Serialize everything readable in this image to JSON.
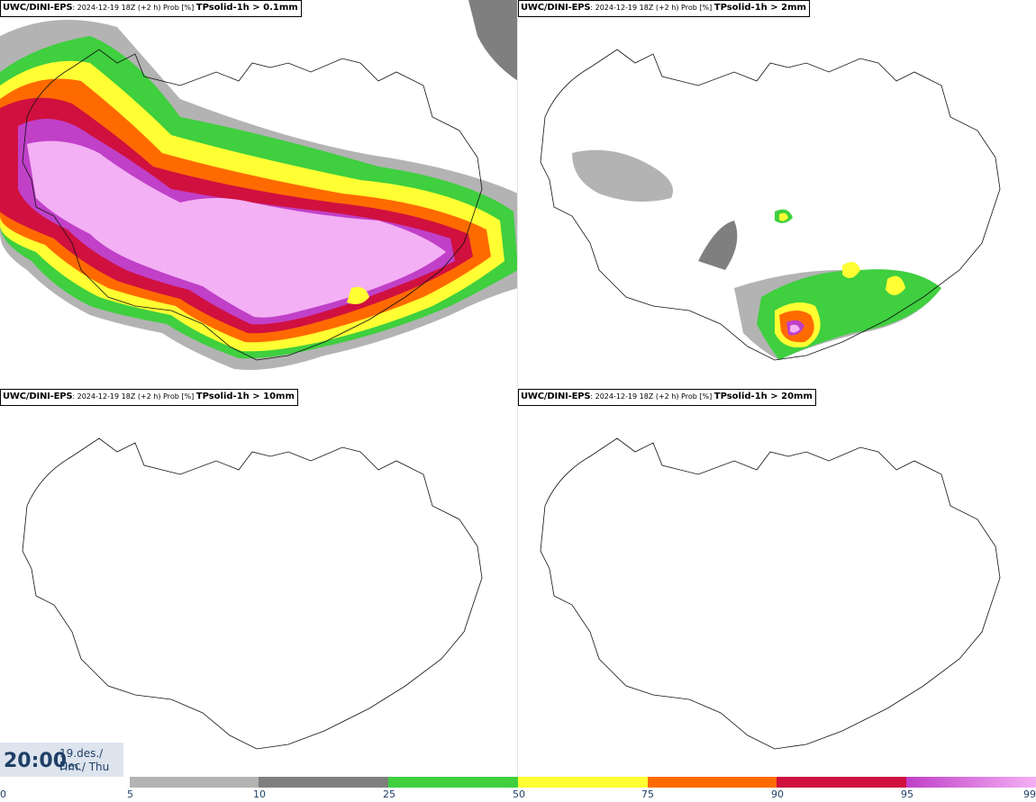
{
  "panels": [
    {
      "model": "UWC/DINI-EPS",
      "meta": ": 2024-12-19 18Z (+2 h) Prob [%] ",
      "field": "TPsolid-1h > 0.1mm"
    },
    {
      "model": "UWC/DINI-EPS",
      "meta": ": 2024-12-19 18Z (+2 h) Prob [%] ",
      "field": "TPsolid-1h > 2mm"
    },
    {
      "model": "UWC/DINI-EPS",
      "meta": ": 2024-12-19 18Z (+2 h) Prob [%] ",
      "field": "TPsolid-1h > 10mm"
    },
    {
      "model": "UWC/DINI-EPS",
      "meta": ": 2024-12-19 18Z (+2 h) Prob [%] ",
      "field": "TPsolid-1h > 20mm"
    }
  ],
  "valid_time": {
    "time": "20:00",
    "date_line1": "19.des./ Dec",
    "date_line2": "Fim./ Thu"
  },
  "colorbar": {
    "ticks": [
      "0",
      "5",
      "10",
      "25",
      "50",
      "75",
      "90",
      "95",
      "99"
    ],
    "colors": {
      "5-10": "#b3b3b3",
      "10-25": "#7f7f7f",
      "25-50": "#3fcf3f",
      "50-75": "#ffff33",
      "75-90": "#ff6a00",
      "90-95": "#d0103f",
      "95-99": "#c040c8",
      "99": "#f4b0f4"
    }
  }
}
